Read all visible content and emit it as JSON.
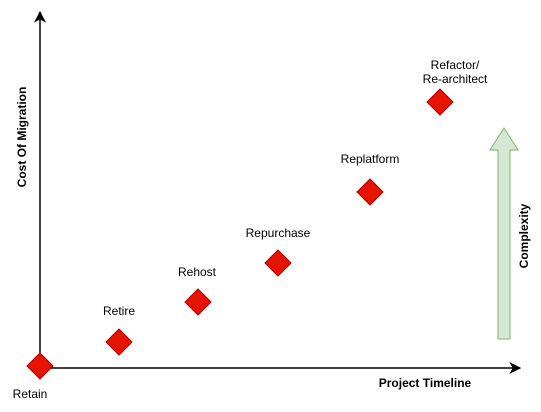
{
  "diagram": {
    "x_axis_label": "Project Timeline",
    "y_axis_label": "Cost Of Migration",
    "complexity_label": "Complexity",
    "strategies": [
      {
        "label_lines": [
          "Retain"
        ]
      },
      {
        "label_lines": [
          "Retire"
        ]
      },
      {
        "label_lines": [
          "Rehost"
        ]
      },
      {
        "label_lines": [
          "Repurchase"
        ]
      },
      {
        "label_lines": [
          "Replatform"
        ]
      },
      {
        "label_lines": [
          "Refactor/",
          "Re-architect"
        ]
      }
    ]
  },
  "colors": {
    "marker_fill": "#e51400",
    "marker_stroke": "#b20000",
    "arrow_fill": "#d5e8d4",
    "arrow_stroke": "#82b366",
    "axis": "#000000"
  }
}
